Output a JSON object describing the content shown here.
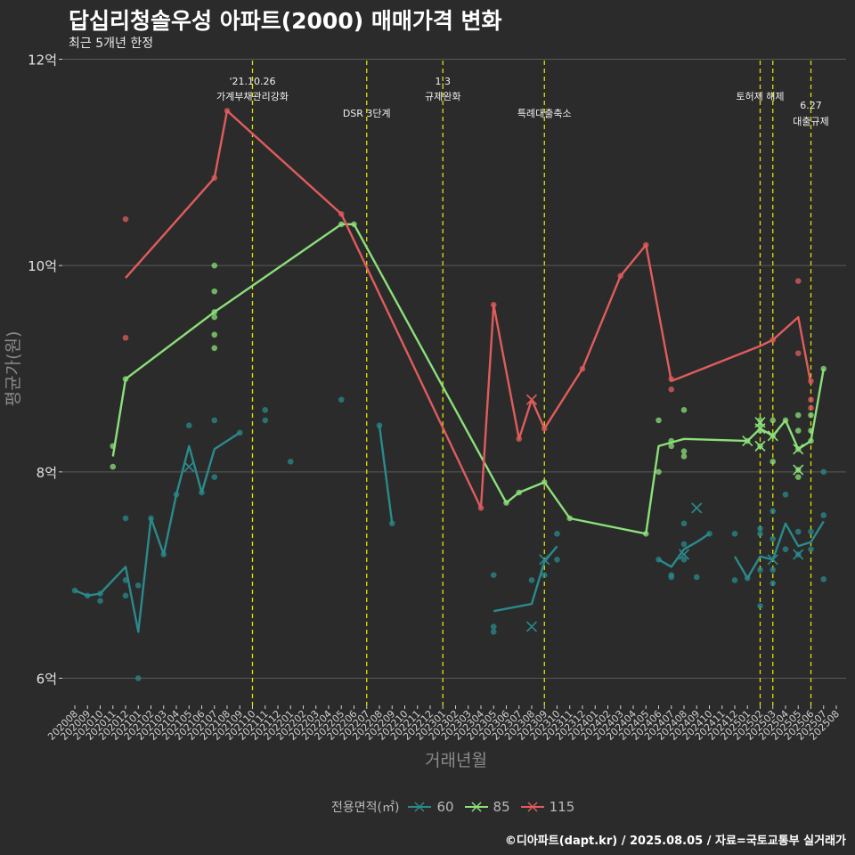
{
  "title": "답십리청솔우성 아파트(2000) 매매가격 변화",
  "subtitle": "최근 5개년 한정",
  "caption": "©디아파트(dapt.kr) / 2025.08.05 / 자료=국토교통부 실거래가",
  "colors": {
    "60": "#2a8a8c",
    "85": "#8be07a",
    "115": "#e05c5c",
    "event_line": "#e0e000",
    "grid": "#5a5a5a",
    "background": "#2b2b2b"
  },
  "legend": {
    "title": "전용면적(㎡)",
    "items": [
      {
        "label": "60",
        "color": "#2a8a8c"
      },
      {
        "label": "85",
        "color": "#8be07a"
      },
      {
        "label": "115",
        "color": "#e05c5c"
      }
    ]
  },
  "chart_data": {
    "type": "line",
    "xlabel": "거래년월",
    "ylabel": "평균가(원)",
    "ylim": [
      5.75,
      12.0
    ],
    "yticks": [
      {
        "value": 6,
        "label": "6억"
      },
      {
        "value": 8,
        "label": "8억"
      },
      {
        "value": 10,
        "label": "10억"
      },
      {
        "value": 12,
        "label": "12억"
      }
    ],
    "categories": [
      "202008",
      "202009",
      "202010",
      "202011",
      "202012",
      "202101",
      "202102",
      "202103",
      "202104",
      "202105",
      "202106",
      "202107",
      "202108",
      "202109",
      "202110",
      "202111",
      "202112",
      "202201",
      "202202",
      "202203",
      "202204",
      "202205",
      "202206",
      "202207",
      "202208",
      "202209",
      "202210",
      "202211",
      "202212",
      "202301",
      "202302",
      "202303",
      "202304",
      "202305",
      "202306",
      "202307",
      "202308",
      "202309",
      "202310",
      "202311",
      "202312",
      "202401",
      "202402",
      "202403",
      "202404",
      "202405",
      "202406",
      "202407",
      "202408",
      "202409",
      "202410",
      "202411",
      "202412",
      "202501",
      "202502",
      "202503",
      "202504",
      "202505",
      "202506",
      "202507",
      "202508"
    ],
    "events": [
      {
        "x": "202110",
        "lines": [
          "'21.10.26",
          "가계부채관리강화"
        ],
        "row": 1
      },
      {
        "x": "202207",
        "lines": [
          "DSR 3단계"
        ],
        "row": 2
      },
      {
        "x": "202301",
        "lines": [
          "1.3",
          "규제완화"
        ],
        "row": 1
      },
      {
        "x": "202309",
        "lines": [
          "특례대출축소"
        ],
        "row": 2
      },
      {
        "x": "202502",
        "lines": [
          "토허제 해제"
        ],
        "row": 1
      },
      {
        "x": "202503",
        "lines": [],
        "row": 1
      },
      {
        "x": "202506",
        "lines": [
          "6.27",
          "대출규제"
        ],
        "row": 3
      }
    ],
    "series": [
      {
        "name": "60",
        "color": "#2a8a8c",
        "line": [
          [
            "202008",
            6.85
          ],
          [
            "202009",
            6.8
          ],
          [
            "202010",
            6.82
          ],
          [
            "202012",
            7.08
          ],
          [
            "202101",
            6.45
          ],
          [
            "202102",
            7.55
          ],
          [
            "202103",
            7.2
          ],
          [
            "202104",
            7.78
          ],
          [
            "202105",
            8.25
          ],
          [
            "202106",
            7.8
          ],
          [
            "202107",
            8.22
          ],
          [
            "202109",
            8.38
          ],
          null,
          [
            "202208",
            8.45
          ],
          [
            "202209",
            7.5
          ],
          null,
          [
            "202305",
            6.65
          ],
          [
            "202308",
            6.72
          ],
          [
            "202309",
            7.13
          ],
          [
            "202310",
            7.28
          ],
          null,
          [
            "202406",
            7.15
          ],
          [
            "202407",
            7.08
          ],
          [
            "202408",
            7.25
          ],
          [
            "202409",
            7.32
          ],
          [
            "202410",
            7.4
          ],
          null,
          [
            "202412",
            7.18
          ],
          [
            "202501",
            6.97
          ],
          [
            "202502",
            7.18
          ],
          [
            "202503",
            7.15
          ],
          [
            "202504",
            7.5
          ],
          [
            "202505",
            7.28
          ],
          [
            "202506",
            7.32
          ],
          [
            "202507",
            7.52
          ]
        ],
        "points": [
          [
            "202008",
            6.85
          ],
          [
            "202009",
            6.8
          ],
          [
            "202010",
            6.82
          ],
          [
            "202010",
            6.75
          ],
          [
            "202012",
            6.95
          ],
          [
            "202012",
            6.8
          ],
          [
            "202012",
            7.55
          ],
          [
            "202101",
            6.9
          ],
          [
            "202101",
            6.0
          ],
          [
            "202102",
            7.55
          ],
          [
            "202103",
            7.2
          ],
          [
            "202104",
            7.78
          ],
          [
            "202105",
            8.45
          ],
          [
            "202106",
            7.8
          ],
          [
            "202107",
            8.5
          ],
          [
            "202107",
            7.95
          ],
          [
            "202109",
            8.38
          ],
          [
            "202111",
            8.6
          ],
          [
            "202111",
            8.5
          ],
          [
            "202201",
            8.1
          ],
          [
            "202205",
            8.7
          ],
          [
            "202208",
            8.45
          ],
          [
            "202209",
            7.5
          ],
          [
            "202305",
            7.0
          ],
          [
            "202305",
            6.5
          ],
          [
            "202305",
            6.45
          ],
          [
            "202308",
            6.95
          ],
          [
            "202309",
            7.0
          ],
          [
            "202310",
            7.4
          ],
          [
            "202310",
            7.15
          ],
          [
            "202406",
            7.15
          ],
          [
            "202407",
            7.0
          ],
          [
            "202407",
            6.98
          ],
          [
            "202408",
            7.5
          ],
          [
            "202408",
            7.3
          ],
          [
            "202408",
            7.15
          ],
          [
            "202409",
            6.98
          ],
          [
            "202410",
            7.4
          ],
          [
            "202412",
            7.4
          ],
          [
            "202412",
            6.95
          ],
          [
            "202501",
            6.97
          ],
          [
            "202502",
            7.45
          ],
          [
            "202502",
            7.4
          ],
          [
            "202502",
            7.05
          ],
          [
            "202502",
            6.7
          ],
          [
            "202503",
            7.62
          ],
          [
            "202503",
            7.35
          ],
          [
            "202503",
            7.05
          ],
          [
            "202503",
            6.92
          ],
          [
            "202504",
            7.78
          ],
          [
            "202504",
            7.25
          ],
          [
            "202505",
            7.42
          ],
          [
            "202505",
            7.2
          ],
          [
            "202506",
            7.42
          ],
          [
            "202506",
            7.25
          ],
          [
            "202507",
            8.0
          ],
          [
            "202507",
            7.58
          ],
          [
            "202507",
            6.96
          ]
        ],
        "cancelled": [
          [
            "202105",
            8.05
          ],
          [
            "202308",
            6.5
          ],
          [
            "202309",
            7.15
          ],
          [
            "202408",
            7.2
          ],
          [
            "202409",
            7.65
          ],
          [
            "202503",
            7.15
          ],
          [
            "202505",
            7.2
          ]
        ]
      },
      {
        "name": "85",
        "color": "#8be07a",
        "line": [
          [
            "202011",
            8.15
          ],
          [
            "202012",
            8.9
          ],
          [
            "202107",
            9.55
          ],
          [
            "202205",
            10.4
          ],
          [
            "202206",
            10.4
          ],
          [
            "202306",
            7.7
          ],
          [
            "202307",
            7.8
          ],
          [
            "202309",
            7.9
          ],
          [
            "202311",
            7.55
          ],
          [
            "202405",
            7.4
          ],
          [
            "202406",
            8.25
          ],
          [
            "202408",
            8.32
          ],
          [
            "202501",
            8.3
          ],
          [
            "202502",
            8.42
          ],
          [
            "202503",
            8.35
          ],
          [
            "202504",
            8.5
          ],
          [
            "202505",
            8.22
          ],
          [
            "202506",
            8.3
          ],
          [
            "202507",
            9.0
          ]
        ],
        "points": [
          [
            "202011",
            8.25
          ],
          [
            "202011",
            8.05
          ],
          [
            "202012",
            8.9
          ],
          [
            "202107",
            10.0
          ],
          [
            "202107",
            9.75
          ],
          [
            "202107",
            9.55
          ],
          [
            "202107",
            9.5
          ],
          [
            "202107",
            9.33
          ],
          [
            "202107",
            9.2
          ],
          [
            "202205",
            10.4
          ],
          [
            "202206",
            10.4
          ],
          [
            "202306",
            7.7
          ],
          [
            "202307",
            7.8
          ],
          [
            "202309",
            7.9
          ],
          [
            "202311",
            7.55
          ],
          [
            "202405",
            7.4
          ],
          [
            "202406",
            8.5
          ],
          [
            "202406",
            8.0
          ],
          [
            "202407",
            8.3
          ],
          [
            "202407",
            8.25
          ],
          [
            "202408",
            8.6
          ],
          [
            "202408",
            8.2
          ],
          [
            "202408",
            8.15
          ],
          [
            "202501",
            8.3
          ],
          [
            "202502",
            8.5
          ],
          [
            "202502",
            8.45
          ],
          [
            "202502",
            8.4
          ],
          [
            "202502",
            8.25
          ],
          [
            "202503",
            8.5
          ],
          [
            "202503",
            8.35
          ],
          [
            "202503",
            8.1
          ],
          [
            "202504",
            8.5
          ],
          [
            "202505",
            8.55
          ],
          [
            "202505",
            8.4
          ],
          [
            "202505",
            8.22
          ],
          [
            "202505",
            8.02
          ],
          [
            "202505",
            7.95
          ],
          [
            "202506",
            8.55
          ],
          [
            "202506",
            8.4
          ],
          [
            "202506",
            8.3
          ],
          [
            "202507",
            9.0
          ]
        ],
        "cancelled": [
          [
            "202501",
            8.3
          ],
          [
            "202502",
            8.48
          ],
          [
            "202502",
            8.42
          ],
          [
            "202502",
            8.25
          ],
          [
            "202503",
            8.35
          ],
          [
            "202505",
            8.22
          ],
          [
            "202505",
            8.02
          ]
        ]
      },
      {
        "name": "115",
        "color": "#e05c5c",
        "line": [
          [
            "202012",
            9.88
          ],
          [
            "202107",
            10.85
          ],
          [
            "202108",
            11.5
          ],
          [
            "202205",
            10.5
          ],
          [
            "202304",
            7.65
          ],
          [
            "202305",
            9.62
          ],
          [
            "202307",
            8.32
          ],
          [
            "202308",
            8.7
          ],
          [
            "202309",
            8.42
          ],
          [
            "202312",
            9.0
          ],
          [
            "202403",
            9.9
          ],
          [
            "202405",
            10.2
          ],
          [
            "202407",
            8.88
          ],
          [
            "202502",
            9.22
          ],
          [
            "202503",
            9.28
          ],
          [
            "202505",
            9.5
          ],
          [
            "202506",
            8.85
          ]
        ],
        "points": [
          [
            "202012",
            10.45
          ],
          [
            "202012",
            9.3
          ],
          [
            "202107",
            10.85
          ],
          [
            "202108",
            11.5
          ],
          [
            "202205",
            10.5
          ],
          [
            "202304",
            7.65
          ],
          [
            "202305",
            9.62
          ],
          [
            "202307",
            8.32
          ],
          [
            "202309",
            8.42
          ],
          [
            "202312",
            9.0
          ],
          [
            "202403",
            9.9
          ],
          [
            "202405",
            10.2
          ],
          [
            "202407",
            8.9
          ],
          [
            "202407",
            8.8
          ],
          [
            "202503",
            9.28
          ],
          [
            "202505",
            9.85
          ],
          [
            "202505",
            9.15
          ],
          [
            "202506",
            8.88
          ],
          [
            "202506",
            8.7
          ],
          [
            "202506",
            8.62
          ]
        ],
        "cancelled": [
          [
            "202308",
            8.7
          ]
        ]
      }
    ]
  }
}
